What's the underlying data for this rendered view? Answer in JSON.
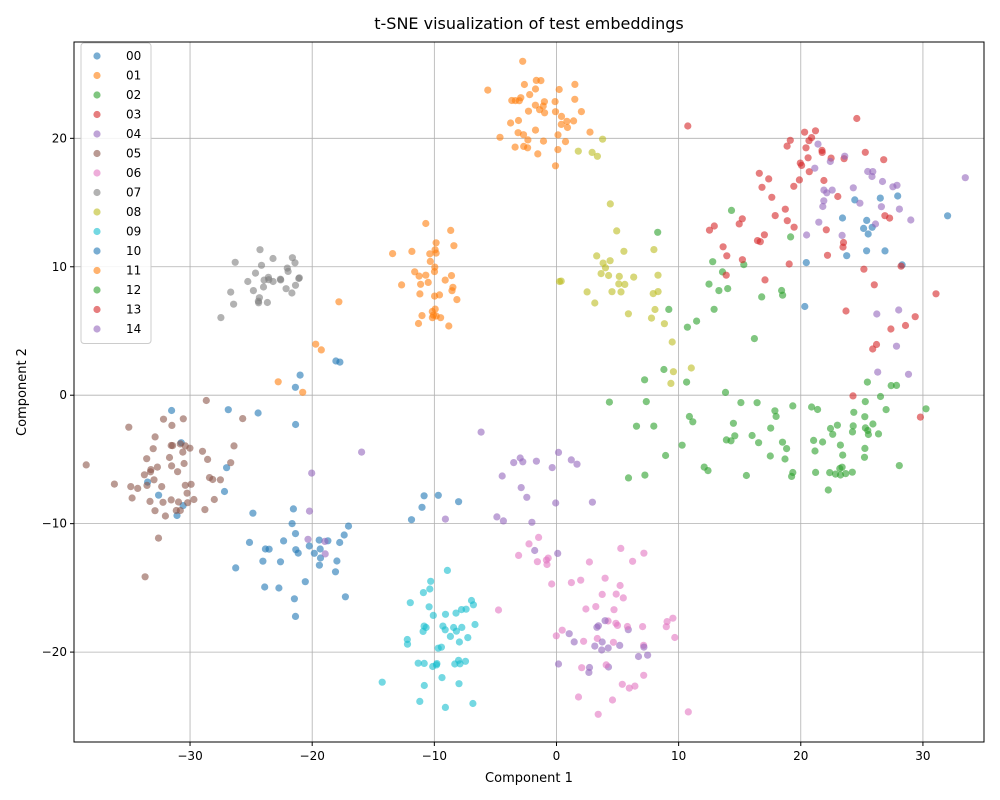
{
  "chart_data": {
    "type": "scatter",
    "title": "t-SNE visualization of test embeddings",
    "xlabel": "Component 1",
    "ylabel": "Component 2",
    "xlim": [
      -39.5,
      35
    ],
    "ylim": [
      -27,
      27.5
    ],
    "xticks": [
      -30,
      -20,
      -10,
      0,
      10,
      20,
      30
    ],
    "yticks": [
      -20,
      -10,
      0,
      10,
      20
    ],
    "tick_labels": {
      "x": [
        "−30",
        "−20",
        "−10",
        "0",
        "10",
        "20",
        "30"
      ],
      "y": [
        "−20",
        "−10",
        "0",
        "10",
        "20"
      ]
    },
    "grid": true,
    "legend_position": "top-left",
    "series": [
      {
        "name": "00",
        "color": "#1f77b4",
        "clusters": [
          {
            "cx": -20.5,
            "cy": -12.5,
            "sx": 2.8,
            "sy": 1.8,
            "n": 30
          },
          {
            "cx": -28.5,
            "cy": -6.5,
            "sx": 2.5,
            "sy": 3.5,
            "n": 10
          },
          {
            "cx": -21.0,
            "cy": -1.0,
            "sx": 2.0,
            "sy": 2.5,
            "n": 6
          }
        ]
      },
      {
        "name": "01",
        "color": "#ff7f0e",
        "clusters": [
          {
            "cx": -1.5,
            "cy": 21.5,
            "sx": 2.0,
            "sy": 1.8,
            "n": 45
          },
          {
            "cx": -9.8,
            "cy": 9.5,
            "sx": 1.2,
            "sy": 2.0,
            "n": 5
          }
        ]
      },
      {
        "name": "02",
        "color": "#2ca02c",
        "clusters": [
          {
            "cx": 13.5,
            "cy": -3.0,
            "sx": 4.0,
            "sy": 2.3,
            "n": 30
          },
          {
            "cx": 22.0,
            "cy": -3.5,
            "sx": 3.0,
            "sy": 2.3,
            "n": 25
          },
          {
            "cx": 17.0,
            "cy": 5.0,
            "sx": 4.5,
            "sy": 4.5,
            "n": 10
          }
        ]
      },
      {
        "name": "03",
        "color": "#d62728",
        "clusters": [
          {
            "cx": 20.5,
            "cy": 19.0,
            "sx": 2.8,
            "sy": 1.7,
            "n": 25
          },
          {
            "cx": 17.0,
            "cy": 12.8,
            "sx": 3.0,
            "sy": 1.5,
            "n": 15
          },
          {
            "cx": 28.0,
            "cy": 6.0,
            "sx": 2.5,
            "sy": 5.0,
            "n": 5
          }
        ]
      },
      {
        "name": "04",
        "color": "#9467bd",
        "clusters": [
          {
            "cx": 3.5,
            "cy": -19.5,
            "sx": 2.2,
            "sy": 1.8,
            "n": 10
          },
          {
            "cx": -4.0,
            "cy": -7.5,
            "sx": 2.5,
            "sy": 3.0,
            "n": 8
          }
        ]
      },
      {
        "name": "05",
        "color": "#8c564b",
        "clusters": [
          {
            "cx": -31.0,
            "cy": -6.0,
            "sx": 2.6,
            "sy": 2.4,
            "n": 55
          }
        ]
      },
      {
        "name": "06",
        "color": "#e377c2",
        "clusters": [
          {
            "cx": 4.5,
            "cy": -18.0,
            "sx": 2.8,
            "sy": 2.6,
            "n": 40
          },
          {
            "cx": -2.0,
            "cy": -14.0,
            "sx": 2.0,
            "sy": 1.5,
            "n": 8
          }
        ]
      },
      {
        "name": "07",
        "color": "#7f7f7f",
        "clusters": [
          {
            "cx": -23.5,
            "cy": 9.0,
            "sx": 2.0,
            "sy": 1.6,
            "n": 30
          }
        ]
      },
      {
        "name": "08",
        "color": "#bcbd22",
        "clusters": [
          {
            "cx": 5.5,
            "cy": 9.0,
            "sx": 2.5,
            "sy": 1.8,
            "n": 25
          },
          {
            "cx": 2.5,
            "cy": 19.0,
            "sx": 0.8,
            "sy": 0.6,
            "n": 4
          },
          {
            "cx": 9.5,
            "cy": 3.0,
            "sx": 1.5,
            "sy": 2.5,
            "n": 6
          }
        ]
      },
      {
        "name": "09",
        "color": "#17becf",
        "clusters": [
          {
            "cx": -9.5,
            "cy": -20.0,
            "sx": 1.8,
            "sy": 2.6,
            "n": 45
          }
        ]
      },
      {
        "name": "10",
        "color": "#1f77b4",
        "clusters": [
          {
            "cx": 26.0,
            "cy": 12.5,
            "sx": 2.5,
            "sy": 2.2,
            "n": 15
          },
          {
            "cx": -9.5,
            "cy": -8.5,
            "sx": 1.5,
            "sy": 1.2,
            "n": 5
          }
        ]
      },
      {
        "name": "11",
        "color": "#ff7f0e",
        "clusters": [
          {
            "cx": -10.0,
            "cy": 9.0,
            "sx": 1.2,
            "sy": 2.0,
            "n": 30
          },
          {
            "cx": -19.0,
            "cy": 2.5,
            "sx": 2.0,
            "sy": 2.0,
            "n": 5
          }
        ]
      },
      {
        "name": "12",
        "color": "#2ca02c",
        "clusters": [
          {
            "cx": 27.0,
            "cy": -2.0,
            "sx": 2.5,
            "sy": 2.0,
            "n": 15
          },
          {
            "cx": 12.0,
            "cy": 10.0,
            "sx": 5.0,
            "sy": 4.0,
            "n": 10
          }
        ]
      },
      {
        "name": "13",
        "color": "#d62728",
        "clusters": [
          {
            "cx": 26.0,
            "cy": 10.0,
            "sx": 3.0,
            "sy": 2.5,
            "n": 12
          },
          {
            "cx": 13.5,
            "cy": 11.5,
            "sx": 1.5,
            "sy": 1.5,
            "n": 5
          }
        ]
      },
      {
        "name": "14",
        "color": "#9467bd",
        "clusters": [
          {
            "cx": 24.0,
            "cy": 15.5,
            "sx": 3.0,
            "sy": 1.8,
            "n": 25
          },
          {
            "cx": -3.0,
            "cy": -6.5,
            "sx": 2.0,
            "sy": 2.5,
            "n": 12
          },
          {
            "cx": -20.0,
            "cy": -9.5,
            "sx": 2.0,
            "sy": 2.5,
            "n": 6
          },
          {
            "cx": 3.5,
            "cy": -20.0,
            "sx": 2.5,
            "sy": 1.5,
            "n": 8
          },
          {
            "cx": 27.0,
            "cy": 2.5,
            "sx": 2.0,
            "sy": 2.5,
            "n": 5
          }
        ]
      }
    ]
  }
}
